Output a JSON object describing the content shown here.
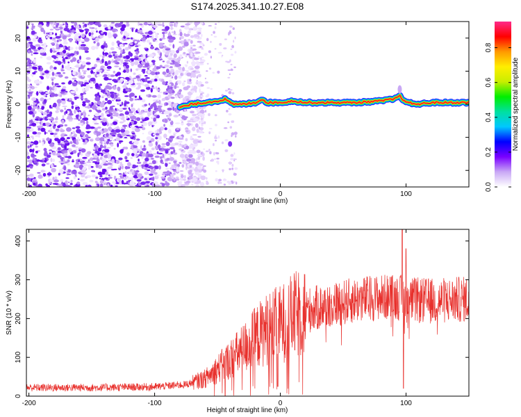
{
  "title": "S174.2025.341.10.27.E08",
  "colors": {
    "axis": "#000000",
    "snr_line": "#e8302c",
    "scatter": "#7a2df0",
    "background": "#ffffff"
  },
  "chart_data": [
    {
      "id": "spectrogram",
      "type": "heatmap",
      "title": "S174.2025.341.10.27.E08",
      "xlabel": "Height of straight line (km)",
      "ylabel": "Frequency (Hz)",
      "xlim": [
        -202,
        150
      ],
      "ylim": [
        -25,
        25
      ],
      "xticks": [
        -200,
        -100,
        0,
        100
      ],
      "yticks": [
        -20,
        -10,
        0,
        10,
        20
      ],
      "description_points": {
        "noise_region_x": [
          -202,
          -65
        ],
        "sparse_region_x": [
          -65,
          -35
        ],
        "ridge_start_x": -82,
        "isolated_blob": {
          "x": -40,
          "y": -12
        },
        "ridge_trace": [
          {
            "x": -80,
            "y": -1.0
          },
          {
            "x": -70,
            "y": 0.0
          },
          {
            "x": -60,
            "y": 0.5
          },
          {
            "x": -50,
            "y": 1.0
          },
          {
            "x": -44,
            "y": 1.5
          },
          {
            "x": -38,
            "y": 0.0
          },
          {
            "x": -30,
            "y": 0.0
          },
          {
            "x": -20,
            "y": 0.5
          },
          {
            "x": -15,
            "y": 1.5
          },
          {
            "x": -10,
            "y": 0.5
          },
          {
            "x": 0,
            "y": 0.5
          },
          {
            "x": 10,
            "y": 1.0
          },
          {
            "x": 20,
            "y": 0.5
          },
          {
            "x": 40,
            "y": 0.5
          },
          {
            "x": 60,
            "y": 0.5
          },
          {
            "x": 80,
            "y": 1.0
          },
          {
            "x": 90,
            "y": 1.5
          },
          {
            "x": 95,
            "y": 2.5
          },
          {
            "x": 100,
            "y": 0.5
          },
          {
            "x": 110,
            "y": 0.0
          },
          {
            "x": 120,
            "y": 0.5
          },
          {
            "x": 150,
            "y": 0.5
          }
        ]
      },
      "colorbar": {
        "label": "Normalized spectral amplitude",
        "range": [
          0.0,
          0.95
        ],
        "ticks": [
          "0.0",
          "0.2",
          "0.4",
          "0.6",
          "0.8"
        ],
        "tick_values": [
          0.0,
          0.2,
          0.4,
          0.6,
          0.8
        ],
        "colormap": [
          "#ffffff",
          "#c9a8f5",
          "#7a00ff",
          "#0000ff",
          "#00c8ff",
          "#00e0a0",
          "#00ee00",
          "#c8ee00",
          "#ffee00",
          "#ff9900",
          "#ff0000",
          "#ff2a8a"
        ]
      }
    },
    {
      "id": "snr",
      "type": "line",
      "xlabel": "Height of straight line (km)",
      "ylabel": "SNR (10 * v/v)",
      "xlim": [
        -202,
        150
      ],
      "ylim": [
        0,
        430
      ],
      "xticks": [
        -200,
        -100,
        0,
        100
      ],
      "yticks": [
        0,
        100,
        200,
        300,
        400
      ],
      "series": [
        {
          "name": "SNR",
          "envelope": [
            {
              "x": -202,
              "y": 22
            },
            {
              "x": -150,
              "y": 22
            },
            {
              "x": -100,
              "y": 24
            },
            {
              "x": -75,
              "y": 30
            },
            {
              "x": -60,
              "y": 45
            },
            {
              "x": -50,
              "y": 70
            },
            {
              "x": -40,
              "y": 95
            },
            {
              "x": -30,
              "y": 120
            },
            {
              "x": -20,
              "y": 150
            },
            {
              "x": -10,
              "y": 175
            },
            {
              "x": 0,
              "y": 185
            },
            {
              "x": 10,
              "y": 205
            },
            {
              "x": 20,
              "y": 220
            },
            {
              "x": 40,
              "y": 235
            },
            {
              "x": 60,
              "y": 248
            },
            {
              "x": 80,
              "y": 255
            },
            {
              "x": 95,
              "y": 255
            },
            {
              "x": 100,
              "y": 248
            },
            {
              "x": 120,
              "y": 245
            },
            {
              "x": 150,
              "y": 250
            }
          ],
          "spikes": [
            {
              "x": 97,
              "y": 430
            },
            {
              "x": 98,
              "y": 20
            },
            {
              "x": 100,
              "y": 380
            },
            {
              "x": -44,
              "y": 0
            },
            {
              "x": -2,
              "y": 25
            }
          ]
        }
      ]
    }
  ]
}
